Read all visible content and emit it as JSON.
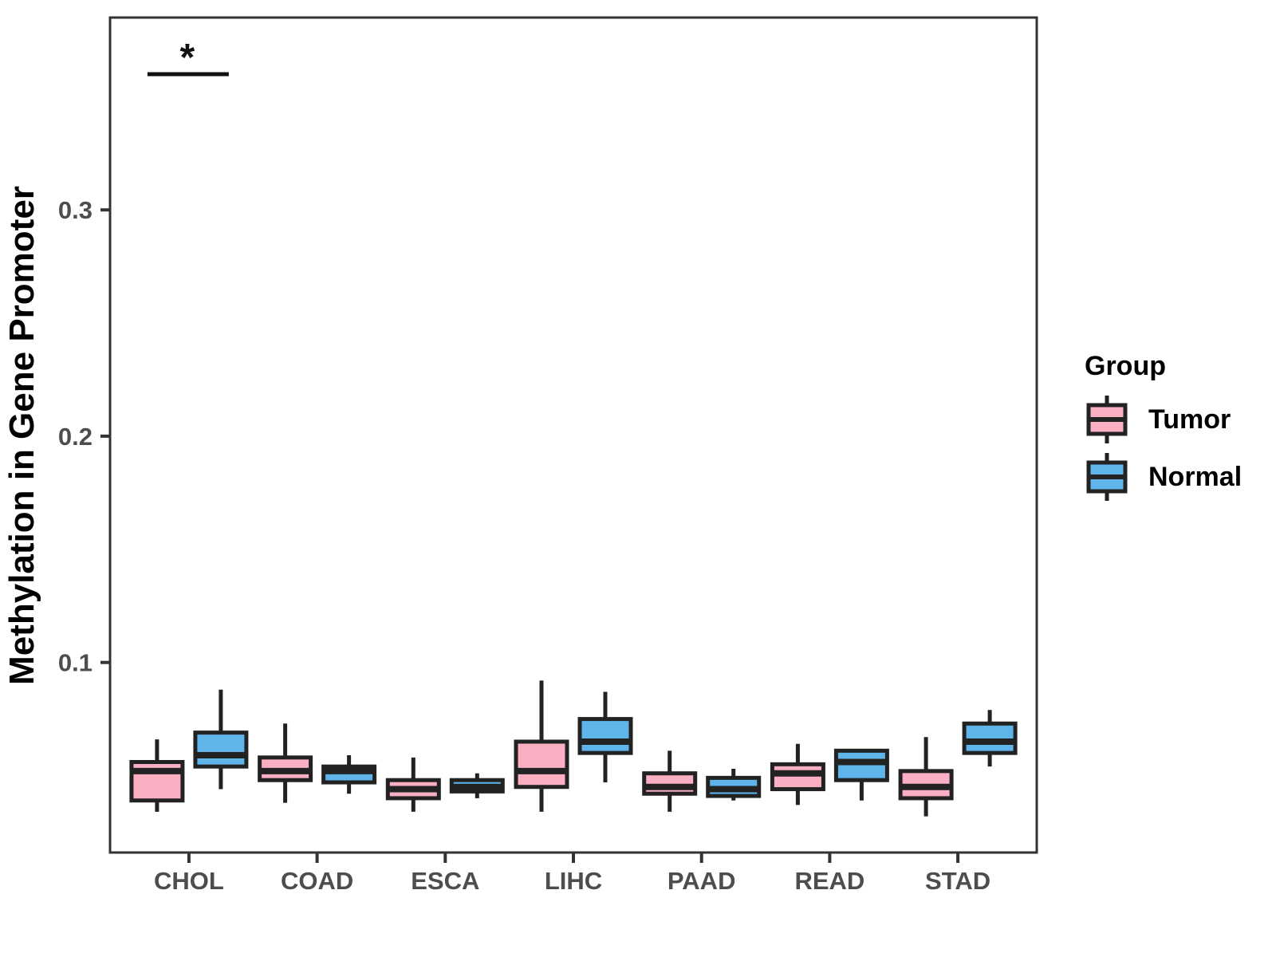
{
  "chart_data": {
    "type": "boxplot",
    "title": "",
    "xlabel": "",
    "ylabel": "Methylation in Gene Promoter",
    "categories": [
      "CHOL",
      "COAD",
      "ESCA",
      "LIHC",
      "PAAD",
      "READ",
      "STAD"
    ],
    "yticks": [
      0.1,
      0.2,
      0.3
    ],
    "ylim": [
      0.016,
      0.385
    ],
    "grid": "off",
    "legend": {
      "title": "Group",
      "position": "right"
    },
    "series": [
      {
        "name": "Tumor",
        "color": "#FAAFC3",
        "boxes": [
          {
            "category": "CHOL",
            "whisker_low": 0.034,
            "q1": 0.039,
            "median": 0.052,
            "q3": 0.056,
            "whisker_high": 0.066
          },
          {
            "category": "COAD",
            "whisker_low": 0.038,
            "q1": 0.048,
            "median": 0.052,
            "q3": 0.058,
            "whisker_high": 0.073
          },
          {
            "category": "ESCA",
            "whisker_low": 0.034,
            "q1": 0.04,
            "median": 0.044,
            "q3": 0.048,
            "whisker_high": 0.058
          },
          {
            "category": "LIHC",
            "whisker_low": 0.034,
            "q1": 0.045,
            "median": 0.052,
            "q3": 0.065,
            "whisker_high": 0.092
          },
          {
            "category": "PAAD",
            "whisker_low": 0.034,
            "q1": 0.042,
            "median": 0.045,
            "q3": 0.051,
            "whisker_high": 0.061
          },
          {
            "category": "READ",
            "whisker_low": 0.037,
            "q1": 0.044,
            "median": 0.051,
            "q3": 0.055,
            "whisker_high": 0.064
          },
          {
            "category": "STAD",
            "whisker_low": 0.032,
            "q1": 0.04,
            "median": 0.045,
            "q3": 0.052,
            "whisker_high": 0.067
          }
        ]
      },
      {
        "name": "Normal",
        "color": "#5FB4EA",
        "boxes": [
          {
            "category": "CHOL",
            "whisker_low": 0.044,
            "q1": 0.054,
            "median": 0.059,
            "q3": 0.069,
            "whisker_high": 0.088
          },
          {
            "category": "COAD",
            "whisker_low": 0.042,
            "q1": 0.047,
            "median": 0.052,
            "q3": 0.054,
            "whisker_high": 0.059
          },
          {
            "category": "ESCA",
            "whisker_low": 0.04,
            "q1": 0.043,
            "median": 0.045,
            "q3": 0.048,
            "whisker_high": 0.051
          },
          {
            "category": "LIHC",
            "whisker_low": 0.047,
            "q1": 0.06,
            "median": 0.065,
            "q3": 0.075,
            "whisker_high": 0.087
          },
          {
            "category": "PAAD",
            "whisker_low": 0.039,
            "q1": 0.041,
            "median": 0.044,
            "q3": 0.049,
            "whisker_high": 0.053
          },
          {
            "category": "READ",
            "whisker_low": 0.039,
            "q1": 0.048,
            "median": 0.056,
            "q3": 0.061,
            "whisker_high": 0.061
          },
          {
            "category": "STAD",
            "whisker_low": 0.054,
            "q1": 0.06,
            "median": 0.065,
            "q3": 0.073,
            "whisker_high": 0.079
          }
        ]
      }
    ],
    "significance": [
      {
        "category": "CHOL",
        "label": "*"
      }
    ]
  },
  "style_colors": {
    "box_outline": "#222222",
    "axis_line": "#333333",
    "axis_text": "#4D4D4D",
    "title_text": "#000000"
  }
}
